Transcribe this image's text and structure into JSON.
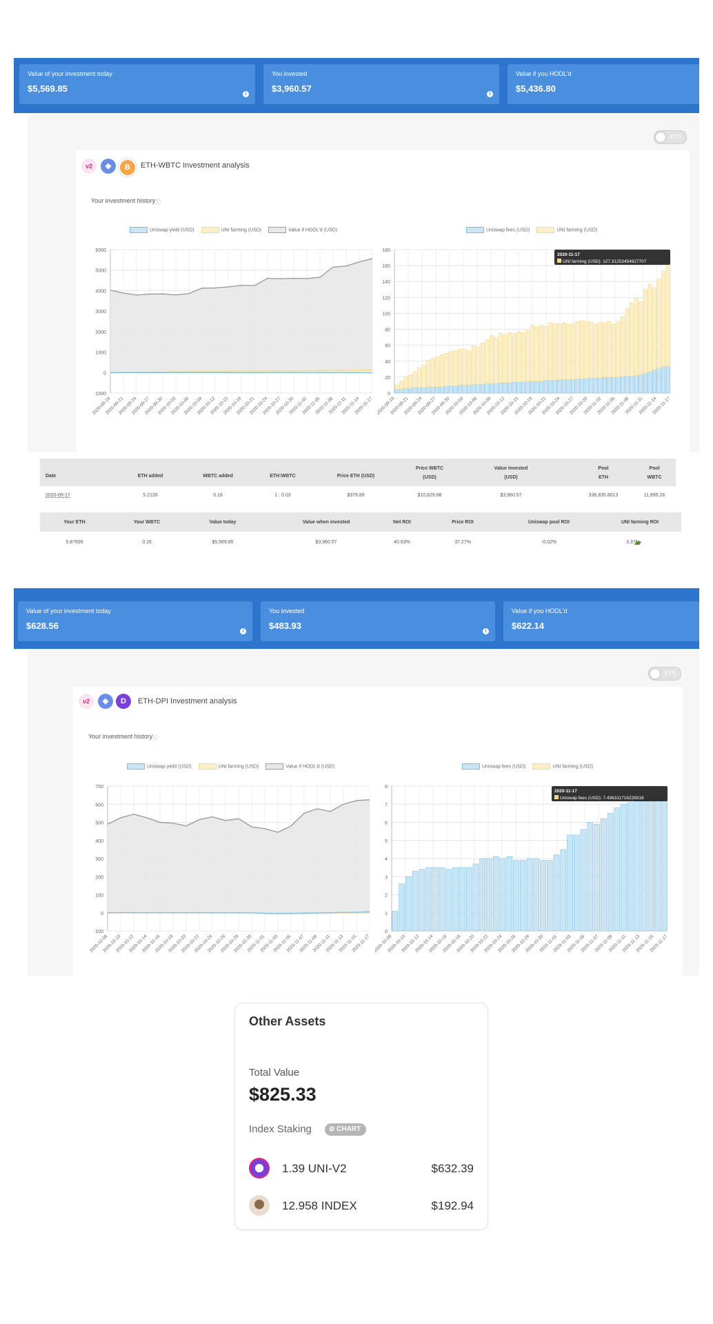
{
  "colors": {
    "header_bar": "#2d75cc",
    "card": "#4a8fdf",
    "blue_fill": "#c9e5f5",
    "blue_line": "#7cc0e8",
    "yellow_fill": "#fbefc9",
    "yellow_line": "#f3d98a",
    "grey_fill": "#e8e8e8",
    "grey_line": "#9c9c9c"
  },
  "section1": {
    "cards": [
      {
        "label": "Value of your investment today",
        "value": "$5,569.85"
      },
      {
        "label": "You invested",
        "value": "$3,960.57"
      },
      {
        "label": "Value if you HODL'd",
        "value": "$5,436.80"
      }
    ],
    "toggle_label": "ETH",
    "title": "ETH-WBTC Investment analysis",
    "icons": [
      "uniswap-v2-icon",
      "ethereum-icon",
      "bitcoin-icon"
    ],
    "icon_v2": "v2",
    "icon_b": "B",
    "history_label": "Your investment history",
    "legend_left": [
      "Uniswap yield (USD)",
      "UNI farming (USD)",
      "Value if HODL'd (USD)"
    ],
    "legend_right": [
      "Uniswap fees (USD)",
      "UNI farming (USD)"
    ],
    "table1": {
      "headers": [
        "Date",
        "ETH added",
        "WBTC added",
        "ETH:WBTC",
        "Price ETH (USD)",
        "Price WBTC (USD)",
        "Value invested (USD)",
        "Pool ETH",
        "Pool WBTC"
      ],
      "row": [
        "2020-09-17",
        "5.2126",
        "0.18",
        "1 : 0.03",
        "$379.89",
        "$10,829.88",
        "$3,960.57",
        "336,835.8013",
        "11,895.26"
      ]
    },
    "table2": {
      "headers": [
        "Your ETH",
        "Your WBTC",
        "Value today",
        "Value when invested",
        "Net ROI",
        "Price ROI",
        "Uniswap pool ROI",
        "UNI farming ROI"
      ],
      "row": [
        "5.87699",
        "0.16",
        "$5,569.85",
        "$3,960.57",
        "40.63%",
        "37.27%",
        "-0.02%",
        "3.37%"
      ]
    }
  },
  "section2": {
    "cards": [
      {
        "label": "Value of your investment today",
        "value": "$628.56"
      },
      {
        "label": "You invested",
        "value": "$483.93"
      },
      {
        "label": "Value if you HODL'd",
        "value": "$622.14"
      }
    ],
    "toggle_label": "ETH",
    "title": "ETH-DPI Investment analysis",
    "icons": [
      "uniswap-v2-icon",
      "ethereum-icon",
      "dpi-icon"
    ],
    "icon_v2": "v2",
    "icon_d": "D",
    "history_label": "Your investment history",
    "legend_left": [
      "Uniswap yield (USD)",
      "UNI farming (USD)",
      "Value if HODL'd (USD)"
    ],
    "legend_right": [
      "Uniswap fees (USD)",
      "UNI farming (USD)"
    ]
  },
  "chart_data": [
    {
      "type": "area",
      "x": [
        "2020-09-18",
        "2020-09-21",
        "2020-09-24",
        "2020-09-27",
        "2020-09-30",
        "2020-10-03",
        "2020-10-06",
        "2020-10-09",
        "2020-10-12",
        "2020-10-15",
        "2020-10-18",
        "2020-10-21",
        "2020-10-24",
        "2020-10-27",
        "2020-10-30",
        "2020-11-02",
        "2020-11-05",
        "2020-11-08",
        "2020-11-11",
        "2020-11-14",
        "2020-11-17"
      ],
      "ylim": [
        -1000,
        6000
      ],
      "yticks": [
        "-1000",
        "0",
        "1000",
        "2000",
        "3000",
        "4000",
        "5000",
        "6000"
      ],
      "series": [
        {
          "name": "Uniswap yield (USD)",
          "values": [
            0,
            0,
            0,
            0,
            0,
            0,
            0,
            0,
            0,
            0,
            0,
            0,
            0,
            0,
            0,
            0,
            0,
            0,
            0,
            0,
            -10
          ]
        },
        {
          "name": "UNI farming (USD)",
          "values": [
            0,
            5,
            15,
            25,
            30,
            40,
            45,
            50,
            55,
            60,
            65,
            70,
            80,
            85,
            85,
            90,
            95,
            100,
            110,
            120,
            127
          ]
        },
        {
          "name": "Value if HODL'd (USD)",
          "values": [
            4020,
            3880,
            3780,
            3830,
            3840,
            3790,
            3860,
            4120,
            4130,
            4180,
            4260,
            4240,
            4600,
            4580,
            4600,
            4590,
            4650,
            5150,
            5200,
            5400,
            5560
          ]
        }
      ]
    },
    {
      "type": "bar",
      "stacked": true,
      "categories": [
        "2020-09-18",
        "2020-09-19",
        "2020-09-20",
        "2020-09-21",
        "2020-09-22",
        "2020-09-23",
        "2020-09-24",
        "2020-09-25",
        "2020-09-26",
        "2020-09-27",
        "2020-09-28",
        "2020-09-29",
        "2020-09-30",
        "2020-10-01",
        "2020-10-02",
        "2020-10-03",
        "2020-10-04",
        "2020-10-05",
        "2020-10-06",
        "2020-10-07",
        "2020-10-08",
        "2020-10-09",
        "2020-10-10",
        "2020-10-11",
        "2020-10-12",
        "2020-10-13",
        "2020-10-14",
        "2020-10-15",
        "2020-10-16",
        "2020-10-17",
        "2020-10-18",
        "2020-10-19",
        "2020-10-20",
        "2020-10-21",
        "2020-10-22",
        "2020-10-23",
        "2020-10-24",
        "2020-10-25",
        "2020-10-26",
        "2020-10-27",
        "2020-10-28",
        "2020-10-29",
        "2020-10-30",
        "2020-10-31",
        "2020-11-01",
        "2020-11-02",
        "2020-11-03",
        "2020-11-04",
        "2020-11-05",
        "2020-11-06",
        "2020-11-07",
        "2020-11-08",
        "2020-11-09",
        "2020-11-10",
        "2020-11-11",
        "2020-11-12",
        "2020-11-13",
        "2020-11-14",
        "2020-11-15",
        "2020-11-16",
        "2020-11-17"
      ],
      "xticks": [
        "2020-09-18",
        "2020-09-21",
        "2020-09-24",
        "2020-09-27",
        "2020-09-30",
        "2020-10-03",
        "2020-10-06",
        "2020-10-09",
        "2020-10-12",
        "2020-10-15",
        "2020-10-18",
        "2020-10-21",
        "2020-10-24",
        "2020-10-27",
        "2020-10-30",
        "2020-11-02",
        "2020-11-05",
        "2020-11-08",
        "2020-11-11",
        "2020-11-14",
        "2020-11-17"
      ],
      "ylim": [
        0,
        180
      ],
      "yticks": [
        "0",
        "20",
        "40",
        "60",
        "80",
        "100",
        "120",
        "140",
        "160",
        "180"
      ],
      "series": [
        {
          "name": "Uniswap fees (USD)",
          "values": [
            5,
            5,
            6,
            6,
            7,
            7,
            7,
            8,
            8,
            8,
            8,
            9,
            9,
            9,
            10,
            10,
            10,
            11,
            11,
            11,
            12,
            12,
            12,
            13,
            13,
            13,
            14,
            14,
            14,
            15,
            15,
            15,
            15,
            16,
            16,
            16,
            17,
            17,
            17,
            17,
            18,
            18,
            18,
            19,
            19,
            19,
            20,
            20,
            20,
            20,
            21,
            21,
            21,
            22,
            23,
            25,
            27,
            29,
            31,
            33,
            34
          ]
        },
        {
          "name": "UNI farming (USD)",
          "values": [
            5,
            10,
            15,
            17,
            20,
            25,
            28,
            33,
            36,
            38,
            40,
            41,
            43,
            44,
            45,
            45,
            43,
            48,
            47,
            52,
            55,
            60,
            58,
            62,
            60,
            63,
            61,
            63,
            62,
            64,
            70,
            68,
            70,
            68,
            72,
            71,
            70,
            71,
            69,
            70,
            72,
            73,
            72,
            70,
            68,
            70,
            68,
            70,
            66,
            70,
            75,
            85,
            92,
            98,
            92,
            105,
            110,
            103,
            112,
            120,
            127
          ]
        }
      ],
      "tooltip": {
        "date": "2020-11-17",
        "text": "UNI farming (USD): 127.31253454827707"
      }
    },
    {
      "type": "area",
      "x": [
        "2020-10-08",
        "2020-10-10",
        "2020-10-12",
        "2020-10-14",
        "2020-10-16",
        "2020-10-18",
        "2020-10-20",
        "2020-10-22",
        "2020-10-24",
        "2020-10-26",
        "2020-10-28",
        "2020-10-30",
        "2020-11-01",
        "2020-11-03",
        "2020-11-05",
        "2020-11-07",
        "2020-11-09",
        "2020-11-11",
        "2020-11-13",
        "2020-11-15",
        "2020-11-17"
      ],
      "ylim": [
        -100,
        700
      ],
      "yticks": [
        "-100",
        "0",
        "100",
        "200",
        "300",
        "400",
        "500",
        "600",
        "700"
      ],
      "series": [
        {
          "name": "Uniswap yield (USD)",
          "values": [
            0,
            1,
            1,
            1,
            1,
            1,
            1,
            1,
            0,
            0,
            0,
            0,
            -3,
            -5,
            -4,
            -2,
            -1,
            0,
            2,
            3,
            6
          ]
        },
        {
          "name": "UNI farming (USD)",
          "values": [
            0,
            0,
            0,
            0,
            0,
            0,
            0,
            0,
            0,
            0,
            0,
            0,
            0,
            0,
            0,
            0,
            0,
            0,
            0,
            0,
            0
          ]
        },
        {
          "name": "Value if HODL'd (USD)",
          "values": [
            490,
            525,
            545,
            525,
            500,
            495,
            480,
            515,
            530,
            510,
            520,
            475,
            465,
            445,
            480,
            550,
            575,
            560,
            600,
            620,
            625
          ]
        }
      ]
    },
    {
      "type": "bar",
      "stacked": true,
      "categories": [
        "2020-10-08",
        "2020-10-09",
        "2020-10-10",
        "2020-10-11",
        "2020-10-12",
        "2020-10-13",
        "2020-10-14",
        "2020-10-15",
        "2020-10-16",
        "2020-10-17",
        "2020-10-18",
        "2020-10-19",
        "2020-10-20",
        "2020-10-21",
        "2020-10-22",
        "2020-10-23",
        "2020-10-24",
        "2020-10-25",
        "2020-10-26",
        "2020-10-27",
        "2020-10-28",
        "2020-10-29",
        "2020-10-30",
        "2020-10-31",
        "2020-11-01",
        "2020-11-02",
        "2020-11-03",
        "2020-11-04",
        "2020-11-05",
        "2020-11-06",
        "2020-11-07",
        "2020-11-08",
        "2020-11-09",
        "2020-11-10",
        "2020-11-11",
        "2020-11-12",
        "2020-11-13",
        "2020-11-14",
        "2020-11-15",
        "2020-11-16",
        "2020-11-17"
      ],
      "xticks": [
        "2020-10-08",
        "2020-10-10",
        "2020-10-12",
        "2020-10-14",
        "2020-10-16",
        "2020-10-18",
        "2020-10-20",
        "2020-10-22",
        "2020-10-24",
        "2020-10-26",
        "2020-10-28",
        "2020-10-30",
        "2020-11-01",
        "2020-11-03",
        "2020-11-05",
        "2020-11-07",
        "2020-11-09",
        "2020-11-11",
        "2020-11-13",
        "2020-11-15",
        "2020-11-17"
      ],
      "ylim": [
        0,
        8
      ],
      "yticks": [
        "0",
        "1",
        "2",
        "3",
        "4",
        "5",
        "6",
        "7",
        "8"
      ],
      "series": [
        {
          "name": "Uniswap fees (USD)",
          "values": [
            1.1,
            2.6,
            3.0,
            3.3,
            3.4,
            3.5,
            3.5,
            3.5,
            3.4,
            3.5,
            3.5,
            3.5,
            3.7,
            4.0,
            4.0,
            4.1,
            4.0,
            4.1,
            3.9,
            3.9,
            4.0,
            4.0,
            3.9,
            3.9,
            4.2,
            4.5,
            5.3,
            5.3,
            5.6,
            6.0,
            5.9,
            6.2,
            6.5,
            6.8,
            7.0,
            7.1,
            7.2,
            7.2,
            7.3,
            7.4,
            7.44
          ]
        },
        {
          "name": "UNI farming (USD)",
          "values": [
            0,
            0,
            0,
            0,
            0,
            0,
            0,
            0,
            0,
            0,
            0,
            0,
            0,
            0,
            0,
            0,
            0,
            0,
            0,
            0,
            0,
            0,
            0,
            0,
            0,
            0,
            0,
            0,
            0,
            0,
            0,
            0,
            0,
            0,
            0,
            0,
            0,
            0,
            0,
            0,
            0
          ]
        }
      ],
      "tooltip": {
        "date": "2020-11-17",
        "text": "Uniswap fees (USD): 7.436311716228318"
      }
    }
  ],
  "other_assets": {
    "title": "Other Assets",
    "total_label": "Total Value",
    "total_value": "$825.33",
    "staking_label": "Index Staking",
    "badge": "CHART",
    "items": [
      {
        "amount": "1.39 UNI-V2",
        "value": "$632.39"
      },
      {
        "amount": "12.958 INDEX",
        "value": "$192.94"
      }
    ]
  }
}
